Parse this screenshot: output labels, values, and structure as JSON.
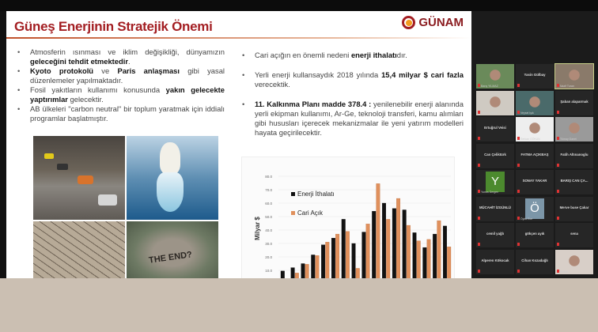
{
  "slide": {
    "title": "Güneş Enerjinin Stratejik Önemi",
    "logo": "GÜNAM",
    "left_bullets": [
      [
        {
          "t": "Atmosferin ısınması ve iklim değişikliği, dünyamızın "
        },
        {
          "t": "geleceğini tehdit etmektedir",
          "b": true
        },
        {
          "t": "."
        }
      ],
      [
        {
          "t": "Kyoto protokolü",
          "b": true
        },
        {
          "t": " ve "
        },
        {
          "t": "Paris anlaşması",
          "b": true
        },
        {
          "t": " gibi yasal düzenlemeler yapılmaktadır."
        }
      ],
      [
        {
          "t": "Fosil yakıtların kullanımı konusunda "
        },
        {
          "t": "yakın gelecekte yaptırımlar",
          "b": true
        },
        {
          "t": " gelecektir."
        }
      ],
      [
        {
          "t": "AB ülkeleri \"carbon neutral\" bir toplum yaratmak için iddialı programlar başlatmıştır."
        }
      ]
    ],
    "right_bullets": [
      [
        {
          "t": "Cari açığın en önemli nedeni "
        },
        {
          "t": "enerji ithalatı",
          "b": true
        },
        {
          "t": "dır."
        }
      ],
      [
        {
          "t": "Yerli enerji kullansaydık 2018 yılında "
        },
        {
          "t": "15,4 milyar $ cari fazla",
          "b": true
        },
        {
          "t": " verecektik."
        }
      ],
      [
        {
          "t": "11. Kalkınma Planı madde 378.4 :",
          "b": true
        },
        {
          "t": " yenilenebilir enerji alanında yerli ekipman kullanımı, Ar-Ge, teknoloji transferi, kamu alımları gibi hususları içerecek mekanizmalar ile yeni yatırım modelleri hayata geçirilecektir."
        }
      ]
    ],
    "photo_caption": "THE END?"
  },
  "chart_data": {
    "type": "bar",
    "ylabel": "Milyar $",
    "ylim": [
      0,
      80
    ],
    "yticks": [
      "0.0",
      "10.0",
      "20.0",
      "30.0",
      "40.0",
      "50.0",
      "60.0",
      "70.0",
      "80.0"
    ],
    "grid": true,
    "legend_placement": "top-left",
    "series": [
      {
        "name": "Enerji İthalatı",
        "color": "#111111",
        "values": [
          9.5,
          12,
          15,
          21.5,
          29,
          34,
          48,
          30,
          38.5,
          54,
          60,
          56,
          55,
          38,
          27,
          37,
          43
        ]
      },
      {
        "name": "Cari Açık",
        "color": "#e0905c",
        "values": [
          0.8,
          8,
          14.5,
          21,
          31,
          37,
          39,
          11.5,
          44.5,
          74.5,
          48,
          63.5,
          43.5,
          32,
          33,
          47,
          27.5
        ]
      }
    ]
  },
  "gallery": {
    "participants": [
      {
        "name": "Barış YILMAZ",
        "video": true,
        "bg": "#6a8a5a"
      },
      {
        "name": "Yasin Gülbay"
      },
      {
        "name": "Nazif Turan",
        "video": true,
        "bg": "#8a7a6a",
        "active": true
      },
      {
        "name": "Hanifi Çalakli",
        "video": true,
        "bg": "#cfcac2"
      },
      {
        "name": "Veysel Işık",
        "video": true,
        "bg": "#4a6a6a"
      },
      {
        "name": "Şaban alaparmak"
      },
      {
        "name": "Ertuğrul Veisi"
      },
      {
        "name": "Serkan GÖKAN",
        "video": true,
        "bg": "#eeeeee"
      },
      {
        "name": "Tümay Danel",
        "video": true,
        "bg": "#9a9a9a"
      },
      {
        "name": "Can Çeliktürk"
      },
      {
        "name": "FATMA AÇIKBAŞ"
      },
      {
        "name": "Fatih Altınanoglu"
      },
      {
        "name": "Yunus Dergen",
        "avatar": "Y",
        "avatar_color": "#4c8a2e"
      },
      {
        "name": "SONAY YAKAR"
      },
      {
        "name": "BARIŞ CAN ÇA..."
      },
      {
        "name": "MÜCAHİT İZGÜNLÜ"
      },
      {
        "name": "Öykü Ece",
        "avatar": "Ö",
        "avatar_color": "#7c96a8"
      },
      {
        "name": "Merve buse Çakar"
      },
      {
        "name": "cemil yağlı"
      },
      {
        "name": "gökçen ayık"
      },
      {
        "name": "sena"
      },
      {
        "name": "Alperen Kökocak"
      },
      {
        "name": "Cihan Kozadağlı"
      },
      {
        "name": "Emine",
        "video": true,
        "bg": "#d8cfc8"
      }
    ]
  }
}
